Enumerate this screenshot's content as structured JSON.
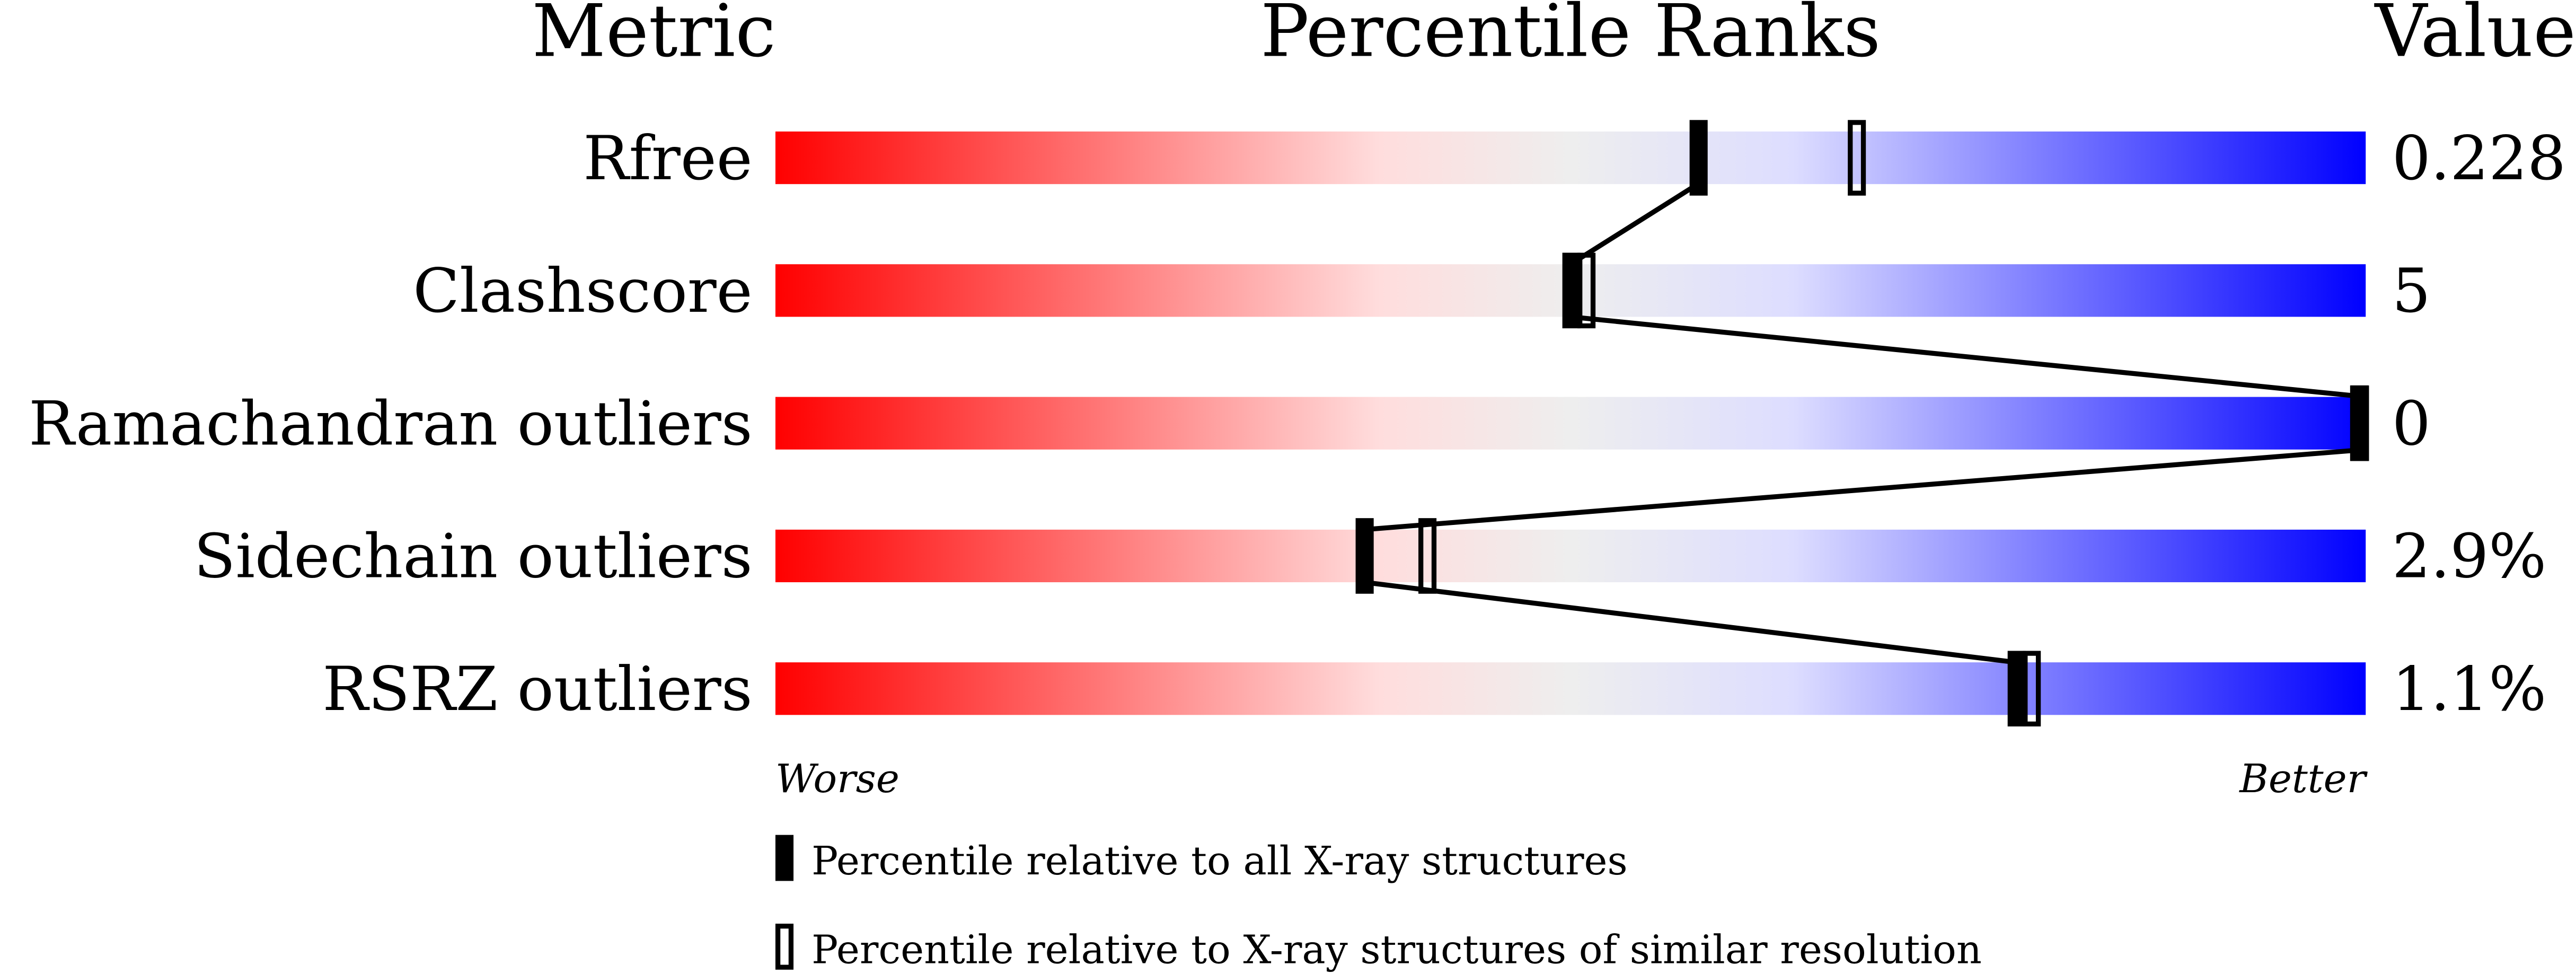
{
  "chart_data": {
    "type": "percentile-slider",
    "headers": {
      "metric": "Metric",
      "ranks": "Percentile Ranks",
      "value": "Value"
    },
    "xlim": [
      0,
      100
    ],
    "axis": {
      "worse": "Worse",
      "better": "Better"
    },
    "gradient_colors": [
      "#ff0000",
      "#ffdddd",
      "#eeeeee",
      "#ddddff",
      "#0000ff"
    ],
    "rows": [
      {
        "metric": "Rfree",
        "value": "0.228",
        "percentile_all": 58,
        "percentile_similar": 68
      },
      {
        "metric": "Clashscore",
        "value": "5",
        "percentile_all": 50,
        "percentile_similar": 51
      },
      {
        "metric": "Ramachandran outliers",
        "value": "0",
        "percentile_all": 100,
        "percentile_similar": 100
      },
      {
        "metric": "Sidechain outliers",
        "value": "2.9%",
        "percentile_all": 37,
        "percentile_similar": 41
      },
      {
        "metric": "RSRZ outliers",
        "value": "1.1%",
        "percentile_all": 78,
        "percentile_similar": 79
      }
    ],
    "legend": {
      "all": "Percentile relative to all X-ray structures",
      "similar": "Percentile relative to X-ray structures of similar resolution"
    }
  }
}
